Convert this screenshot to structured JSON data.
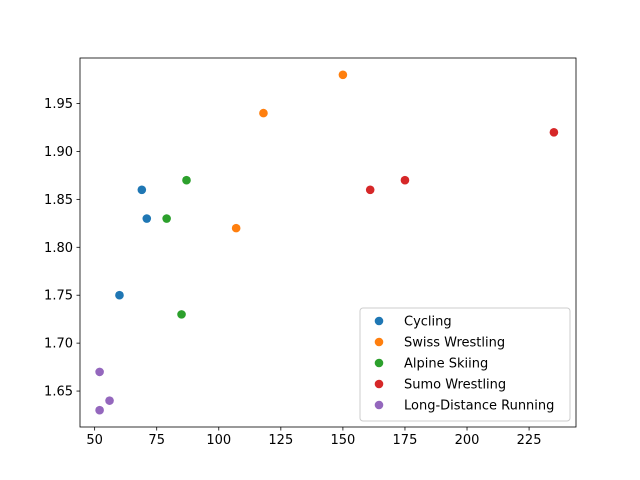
{
  "chart_data": {
    "type": "scatter",
    "title": "",
    "xlabel": "",
    "ylabel": "",
    "xlim": [
      44.1,
      243.9
    ],
    "ylim": [
      1.6125,
      1.9975
    ],
    "xticks": [
      50,
      75,
      100,
      125,
      150,
      175,
      200,
      225
    ],
    "xtick_labels": [
      "50",
      "75",
      "100",
      "125",
      "150",
      "175",
      "200",
      "225"
    ],
    "yticks": [
      1.65,
      1.7,
      1.75,
      1.8,
      1.85,
      1.9,
      1.95
    ],
    "ytick_labels": [
      "1.65",
      "1.70",
      "1.75",
      "1.80",
      "1.85",
      "1.90",
      "1.95"
    ],
    "grid": false,
    "legend_position": "lower-right",
    "series": [
      {
        "name": "Cycling",
        "color": "#1f77b4",
        "x": [
          69,
          71,
          60
        ],
        "y": [
          1.86,
          1.83,
          1.75
        ]
      },
      {
        "name": "Swiss Wrestling",
        "color": "#ff7f0e",
        "x": [
          150,
          118,
          107
        ],
        "y": [
          1.98,
          1.94,
          1.82
        ]
      },
      {
        "name": "Alpine Skiing",
        "color": "#2ca02c",
        "x": [
          87,
          79,
          85
        ],
        "y": [
          1.87,
          1.83,
          1.73
        ]
      },
      {
        "name": "Sumo Wrestling",
        "color": "#d62728",
        "x": [
          235,
          175,
          161
        ],
        "y": [
          1.92,
          1.87,
          1.86
        ]
      },
      {
        "name": "Long-Distance Running",
        "color": "#9467bd",
        "x": [
          52,
          56,
          52
        ],
        "y": [
          1.67,
          1.64,
          1.63
        ]
      }
    ]
  }
}
